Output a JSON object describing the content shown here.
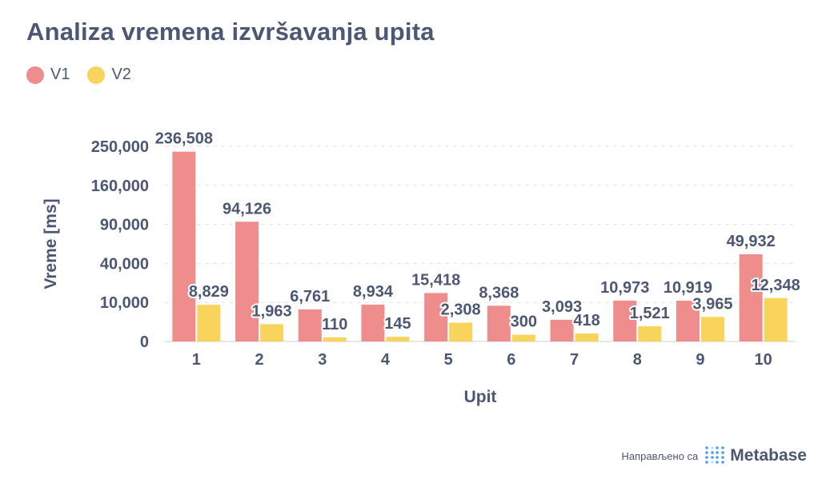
{
  "title": "Analiza vremena izvršavanja upita",
  "footer": {
    "made_with": "Направљено са",
    "brand": "Metabase"
  },
  "colors": {
    "v1": "#ef8c8c",
    "v2": "#f9d45c",
    "text": "#4c5773",
    "grid": "#e2e3e6"
  },
  "chart_data": {
    "type": "bar",
    "title": "Analiza vremena izvršavanja upita",
    "xlabel": "Upit",
    "ylabel": "Vreme [ms]",
    "y_scale": "pow",
    "y_ticks": [
      0,
      10000,
      40000,
      90000,
      160000,
      250000
    ],
    "y_tick_labels": [
      "0",
      "10,000",
      "40,000",
      "90,000",
      "160,000",
      "250,000"
    ],
    "ylim": [
      0,
      250000
    ],
    "grid": true,
    "legend_position": "top-left",
    "categories": [
      "1",
      "2",
      "3",
      "4",
      "5",
      "6",
      "7",
      "8",
      "9",
      "10"
    ],
    "series": [
      {
        "name": "V1",
        "color": "#ef8c8c",
        "values": [
          236508,
          94126,
          6761,
          8934,
          15418,
          8368,
          3093,
          10973,
          10919,
          49932
        ],
        "labels": [
          "236,508",
          "94,126",
          "6,761",
          "8,934",
          "15,418",
          "8,368",
          "3,093",
          "10,973",
          "10,919",
          "49,932"
        ]
      },
      {
        "name": "V2",
        "color": "#f9d45c",
        "values": [
          8829,
          1963,
          110,
          145,
          2308,
          300,
          418,
          1521,
          3965,
          12348
        ],
        "labels": [
          "8,829",
          "1,963",
          "110",
          "145",
          "2,308",
          "300",
          "418",
          "1,521",
          "3,965",
          "12,348"
        ]
      }
    ]
  }
}
